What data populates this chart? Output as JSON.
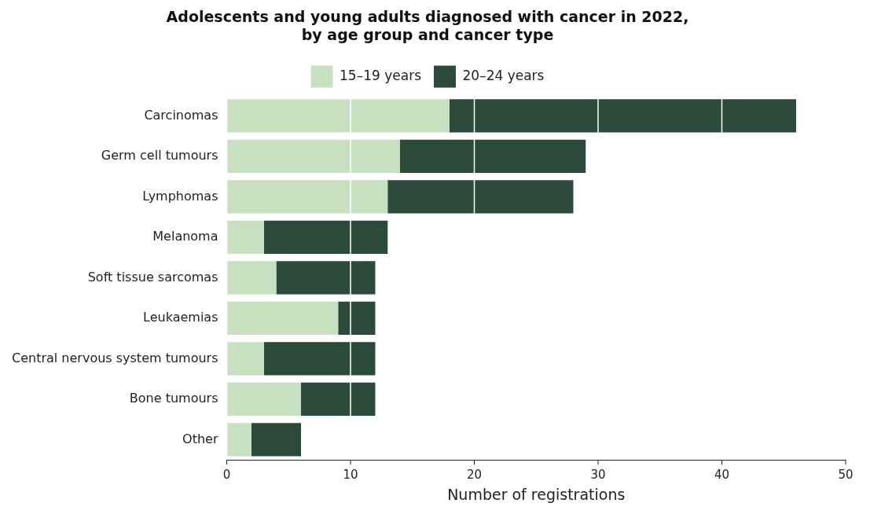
{
  "chart_data": {
    "type": "bar",
    "orientation": "horizontal",
    "stacked": true,
    "title": [
      "Adolescents and young adults diagnosed with cancer in 2022,",
      "by age group and cancer type"
    ],
    "xlabel": "Number of registrations",
    "categories": [
      "Carcinomas",
      "Germ cell tumours",
      "Lymphomas",
      "Melanoma",
      "Soft tissue sarcomas",
      "Leukaemias",
      "Central nervous system tumours",
      "Bone tumours",
      "Other"
    ],
    "series": [
      {
        "name": "15–19 years",
        "color": "#c6e0c0",
        "values": [
          18,
          14,
          13,
          3,
          4,
          9,
          3,
          6,
          2
        ]
      },
      {
        "name": "20–24 years",
        "color": "#2c4a3b",
        "values": [
          28,
          15,
          15,
          10,
          8,
          3,
          9,
          6,
          4
        ]
      }
    ],
    "xlim": [
      0,
      50
    ],
    "xticks": [
      0,
      10,
      20,
      30,
      40,
      50
    ],
    "grid": "x",
    "legend": "top"
  }
}
